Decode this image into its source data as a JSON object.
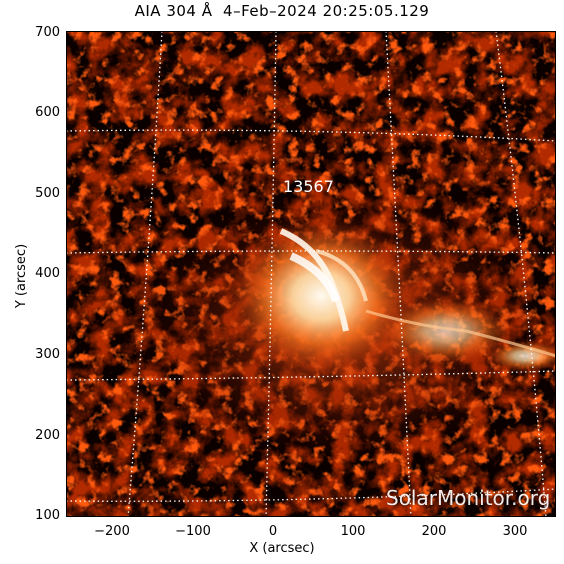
{
  "title": "AIA 304 Å  4–Feb–2024 20:25:05.129",
  "xlabel": "X (arcsec)",
  "ylabel": "Y (arcsec)",
  "x_ticks": [
    "−200",
    "−100",
    "0",
    "100",
    "200",
    "300"
  ],
  "y_ticks": [
    "700",
    "600",
    "500",
    "400",
    "300",
    "200",
    "100"
  ],
  "active_region_label": "13567",
  "watermark": "SolarMonitor.org",
  "colors": {
    "background": "#000000",
    "mid": "#8a1a00",
    "bright": "#ff7a22",
    "core": "#fff6e0",
    "grid": "#ffffff"
  }
}
